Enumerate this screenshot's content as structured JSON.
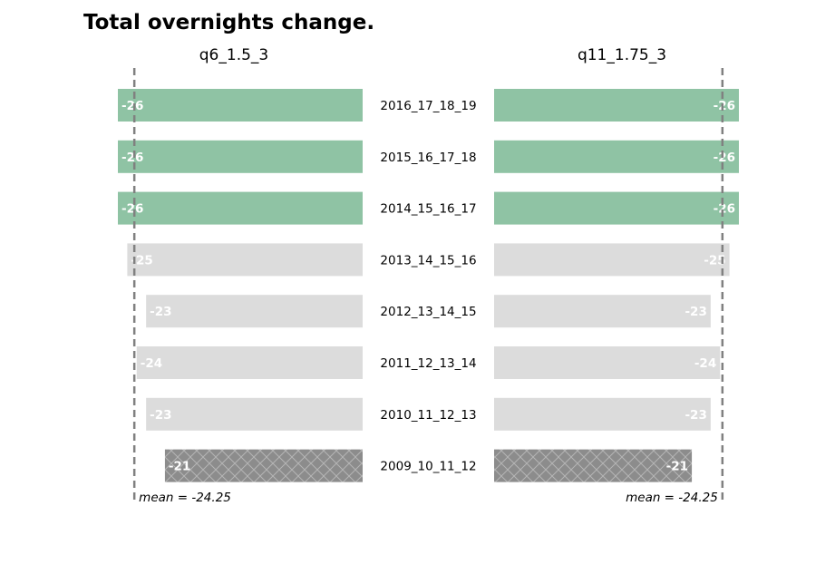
{
  "chart_data": {
    "type": "bar",
    "orientation": "horizontal-butterfly",
    "title": "Total overnights change.",
    "categories": [
      "2016_17_18_19",
      "2015_16_17_18",
      "2014_15_16_17",
      "2013_14_15_16",
      "2012_13_14_15",
      "2011_12_13_14",
      "2010_11_12_13",
      "2009_10_11_12"
    ],
    "series": [
      {
        "name": "q6_1.5_3",
        "side": "left",
        "values": [
          -26,
          -26,
          -26,
          -25,
          -23,
          -24,
          -23,
          -21
        ],
        "labels": [
          "-26",
          "-26",
          "-26",
          "-25",
          "-23",
          "-24",
          "-23",
          "-21"
        ],
        "mean": -24.25,
        "mean_label": "mean = -24.25"
      },
      {
        "name": "q11_1.75_3",
        "side": "right",
        "values": [
          -26,
          -26,
          -26,
          -25,
          -23,
          -24,
          -23,
          -21
        ],
        "labels": [
          "-26",
          "-26",
          "-26",
          "-25",
          "-23",
          "-24",
          "-23",
          "-21"
        ],
        "mean": -24.25,
        "mean_label": "mean = -24.25"
      }
    ],
    "styles": [
      "highlight",
      "highlight",
      "highlight",
      "normal",
      "normal",
      "normal",
      "normal",
      "hatched"
    ],
    "colors": {
      "highlight": "#8fc3a4",
      "normal": "#dcdcdc",
      "hatched": "#8c8c8c",
      "mean_line": "#808080"
    },
    "xlim": [
      0,
      26
    ],
    "grid": false,
    "legend": "none"
  }
}
